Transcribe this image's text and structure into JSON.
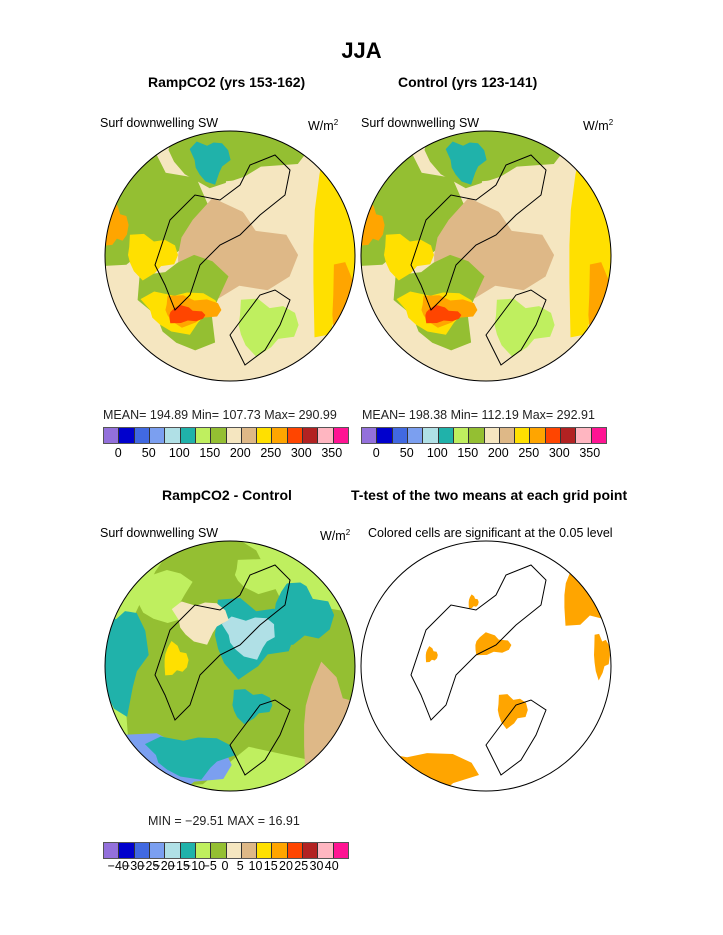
{
  "title": "JJA",
  "panels": [
    {
      "subtitle": "RampCO2 (yrs 153-162)",
      "variable": "Surf downwelling SW",
      "units": "W/m",
      "units_sup": "2",
      "stats": "MEAN=  194.89   Min=  107.73   Max=  290.99"
    },
    {
      "subtitle": "Control (yrs 123-141)",
      "variable": "Surf downwelling SW",
      "units": "W/m",
      "units_sup": "2",
      "stats": "MEAN=  198.38   Min=  112.19   Max=  292.91"
    },
    {
      "subtitle": "RampCO2 - Control",
      "variable": "Surf downwelling SW",
      "units": "W/m",
      "units_sup": "2",
      "stats": "MIN  =  −29.51  MAX  =    16.91"
    },
    {
      "subtitle": "T-test of the two means at each grid point",
      "variable": "Colored cells are significant at the 0.05 level"
    }
  ],
  "colors": [
    "#9370DB",
    "#0000CD",
    "#4169E1",
    "#7B9FF0",
    "#B0E0E6",
    "#20B2AA",
    "#BFEF5F",
    "#94BF32",
    "#F5E6C0",
    "#DEB887",
    "#FFE000",
    "#FFA500",
    "#FF4500",
    "#B22222",
    "#FFB6C1",
    "#FF1493"
  ],
  "chart_data": [
    {
      "type": "heatmap",
      "title": "RampCO2 (yrs 153-162)",
      "colorbar_ticks": [
        "0",
        "50",
        "100",
        "150",
        "200",
        "250",
        "300",
        "350"
      ],
      "mean": 194.89,
      "min": 107.73,
      "max": 290.99
    },
    {
      "type": "heatmap",
      "title": "Control (yrs 123-141)",
      "colorbar_ticks": [
        "0",
        "50",
        "100",
        "150",
        "200",
        "250",
        "300",
        "350"
      ],
      "mean": 198.38,
      "min": 112.19,
      "max": 292.91
    },
    {
      "type": "heatmap",
      "title": "RampCO2 - Control",
      "colorbar_ticks": [
        "−40",
        "−30",
        "−25",
        "−20",
        "−15",
        "−10",
        "−5",
        "0",
        "5",
        "10",
        "15",
        "20",
        "25",
        "30",
        "40"
      ],
      "min": -29.51,
      "max": 16.91
    },
    {
      "type": "heatmap",
      "title": "T-test of the two means at each grid point",
      "significance_color": "#FFA500"
    }
  ]
}
